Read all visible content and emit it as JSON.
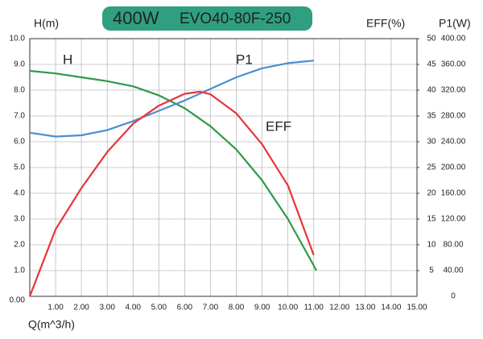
{
  "chart_data": {
    "type": "line",
    "title": "400W",
    "subtitle": "EVO40-80F-250",
    "y_label": "H(m)",
    "y2_label": "EFF(%)",
    "y3_label": "P1(W)",
    "x_label": "Q(m^3/h)",
    "xlim": [
      0,
      15
    ],
    "xticks": [
      {
        "value": 1,
        "label": "1.00"
      },
      {
        "value": 2,
        "label": "2.00"
      },
      {
        "value": 3,
        "label": "3.00"
      },
      {
        "value": 4,
        "label": "4.00"
      },
      {
        "value": 5,
        "label": "5.00"
      },
      {
        "value": 6,
        "label": "6.00"
      },
      {
        "value": 7,
        "label": "7.00"
      },
      {
        "value": 8,
        "label": "8.00"
      },
      {
        "value": 9,
        "label": "9.00"
      },
      {
        "value": 10,
        "label": "10.00"
      },
      {
        "value": 11,
        "label": "11.00"
      },
      {
        "value": 12,
        "label": "12.00"
      },
      {
        "value": 13,
        "label": "13.00"
      },
      {
        "value": 14,
        "label": "14.00"
      },
      {
        "value": 15,
        "label": "15.00"
      }
    ],
    "ylim": [
      0,
      10
    ],
    "yticks": [
      {
        "value": 0,
        "label": "0.00"
      },
      {
        "value": 1,
        "label": "1.0"
      },
      {
        "value": 2,
        "label": "2.0"
      },
      {
        "value": 3,
        "label": "3.0"
      },
      {
        "value": 4,
        "label": "4.0"
      },
      {
        "value": 5,
        "label": "5.0"
      },
      {
        "value": 6,
        "label": "6.0"
      },
      {
        "value": 7,
        "label": "7.0"
      },
      {
        "value": 8,
        "label": "8.0"
      },
      {
        "value": 9,
        "label": "9.0"
      },
      {
        "value": 10,
        "label": "10.0"
      }
    ],
    "y2lim": [
      0,
      50
    ],
    "y2ticks": [
      5,
      10,
      15,
      20,
      25,
      30,
      35,
      40,
      45,
      50
    ],
    "y3lim": [
      0,
      400
    ],
    "y3ticks": [
      0,
      {
        "value": 40,
        "label": "40.00"
      },
      {
        "value": 80,
        "label": "80.00"
      },
      {
        "value": 120,
        "label": "120.00"
      },
      {
        "value": 160,
        "label": "160.00"
      },
      {
        "value": 200,
        "label": "200.00"
      },
      {
        "value": 240,
        "label": "240.00"
      },
      {
        "value": 280,
        "label": "280.00"
      },
      {
        "value": 320,
        "label": "320.00"
      },
      {
        "value": 360,
        "label": "360.00"
      },
      {
        "value": 400,
        "label": "400.00"
      }
    ],
    "grid": true,
    "series": [
      {
        "name": "H",
        "color": "#2e9a47",
        "axis": "y",
        "x": [
          0,
          1,
          2,
          3,
          4,
          5,
          6,
          7,
          8,
          9,
          10,
          11,
          11.1
        ],
        "values": [
          8.75,
          8.65,
          8.5,
          8.35,
          8.15,
          7.8,
          7.3,
          6.6,
          5.7,
          4.5,
          3.0,
          1.2,
          1.0
        ]
      },
      {
        "name": "P1",
        "color": "#4a8fd1",
        "axis": "y3",
        "x": [
          0,
          1,
          2,
          3,
          4,
          5,
          6,
          7,
          8,
          9,
          10,
          11
        ],
        "values": [
          254,
          248,
          250,
          258,
          272,
          288,
          304,
          322,
          340,
          354,
          362,
          366
        ]
      },
      {
        "name": "EFF",
        "color": "#e8343a",
        "axis": "y2",
        "x": [
          0,
          1,
          2,
          3,
          4,
          5,
          6,
          6.6,
          7,
          8,
          9,
          10,
          11
        ],
        "values": [
          0,
          13,
          21,
          28,
          33.5,
          37,
          39.3,
          39.7,
          39.2,
          35.5,
          29.5,
          21.5,
          8
        ]
      }
    ]
  }
}
